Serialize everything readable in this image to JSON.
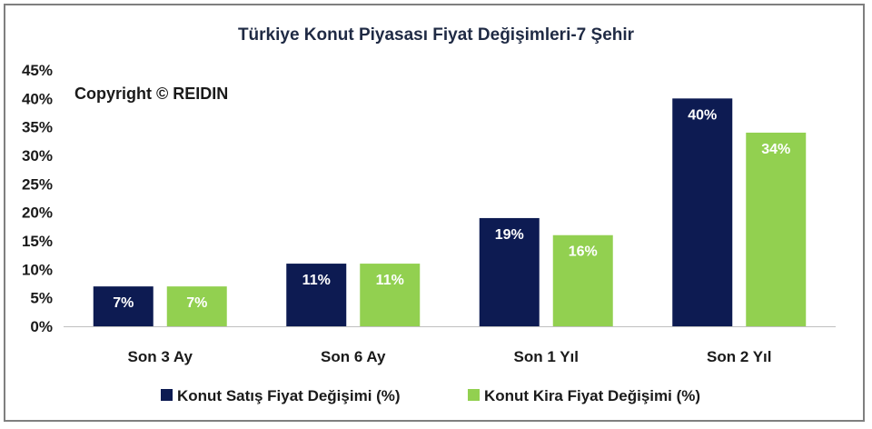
{
  "chart_data": {
    "type": "bar",
    "title": "Türkiye Konut Piyasası Fiyat Değişimleri-7 Şehir",
    "annotation": "Copyright © REIDIN",
    "categories": [
      "Son 3 Ay",
      "Son 6 Ay",
      "Son 1 Yıl",
      "Son 2 Yıl"
    ],
    "series": [
      {
        "name": "Konut Satış Fiyat Değişimi (%)",
        "color": "#0d1b52",
        "values": [
          7,
          11,
          19,
          40
        ],
        "labels": [
          "7%",
          "11%",
          "19%",
          "40%"
        ]
      },
      {
        "name": "Konut Kira Fiyat Değişimi (%)",
        "color": "#92d050",
        "values": [
          7,
          11,
          16,
          34
        ],
        "labels": [
          "7%",
          "11%",
          "16%",
          "34%"
        ]
      }
    ],
    "ylim": [
      0,
      45
    ],
    "yticks": [
      "0%",
      "5%",
      "10%",
      "15%",
      "20%",
      "25%",
      "30%",
      "35%",
      "40%",
      "45%"
    ],
    "xlabel": "",
    "ylabel": "",
    "grid": false,
    "legend": "bottom"
  }
}
